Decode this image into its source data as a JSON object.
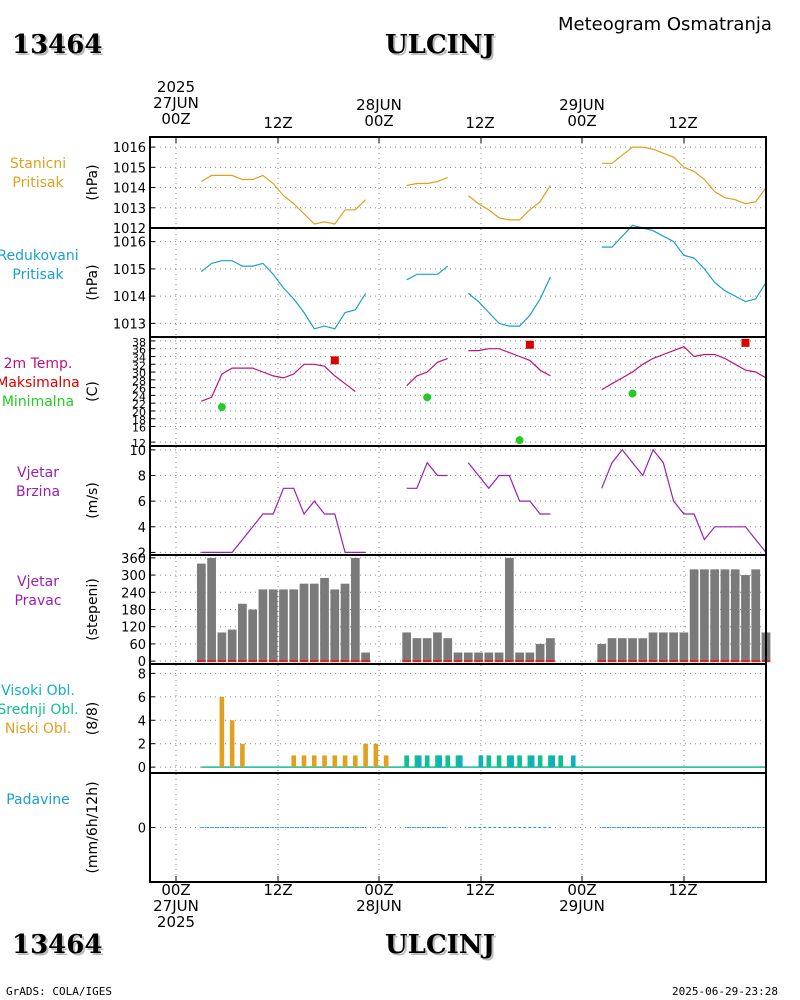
{
  "header": {
    "station_id": "13464",
    "city": "ULCINJ",
    "product": "Meteogram Osmatranja"
  },
  "time_axis": {
    "top_ticks": [
      {
        "lines": [
          "2025",
          "27JUN",
          "00Z"
        ]
      },
      {
        "lines": [
          "12Z"
        ]
      },
      {
        "lines": [
          "28JUN",
          "00Z"
        ]
      },
      {
        "lines": [
          "12Z"
        ]
      },
      {
        "lines": [
          "29JUN",
          "00Z"
        ]
      },
      {
        "lines": [
          "12Z"
        ]
      }
    ],
    "bottom_ticks": [
      {
        "lines": [
          "00Z",
          "27JUN",
          "2025"
        ]
      },
      {
        "lines": [
          "12Z"
        ]
      },
      {
        "lines": [
          "00Z",
          "28JUN"
        ]
      },
      {
        "lines": [
          "12Z"
        ]
      },
      {
        "lines": [
          "00Z",
          "29JUN"
        ]
      },
      {
        "lines": [
          "12Z"
        ]
      }
    ]
  },
  "panels": {
    "pressure_station": {
      "labels": [
        "Stanicni",
        "Pritisak"
      ],
      "unit": "(hPa)",
      "colors": [
        "#e0a020"
      ]
    },
    "pressure_reduced": {
      "labels": [
        "Redukovani",
        "Pritisak"
      ],
      "unit": "(hPa)",
      "colors": [
        "#1aa0d0"
      ]
    },
    "temperature": {
      "labels": [
        "2m Temp.",
        "Maksimalna",
        "Minimalna"
      ],
      "unit": "(C)",
      "colors": [
        "#c0107a",
        "#dd0000",
        "#22cc22"
      ]
    },
    "wind_speed": {
      "labels": [
        "Vjetar",
        "Brzina"
      ],
      "unit": "(m/s)",
      "colors": [
        "#9a20b0"
      ]
    },
    "wind_dir": {
      "labels": [
        "Vjetar",
        "Pravac"
      ],
      "unit": "(stepeni)",
      "colors": [
        "#9a20b0"
      ]
    },
    "clouds": {
      "labels": [
        "Visoki Obl.",
        "Srednji Obl.",
        "Niski Obl."
      ],
      "unit": "(8/8)",
      "colors": [
        "#10b0c0",
        "#10c090",
        "#e0a020"
      ]
    },
    "precip": {
      "labels": [
        "Padavine"
      ],
      "unit": "(mm/6h/12h)",
      "colors": [
        "#1aa0d0"
      ]
    }
  },
  "chart_data": [
    {
      "type": "line",
      "name": "Stanicni Pritisak",
      "ylabel": "(hPa)",
      "yticks": [
        1012,
        1013,
        1014,
        1015,
        1016
      ],
      "ylim": [
        1012,
        1016.5
      ],
      "xlim": [
        -2,
        58
      ],
      "segments": [
        [
          [
            3,
            1014.3
          ],
          [
            4,
            1014.6
          ],
          [
            5,
            1014.6
          ],
          [
            6,
            1014.6
          ],
          [
            7,
            1014.4
          ],
          [
            8,
            1014.4
          ],
          [
            9,
            1014.6
          ],
          [
            10,
            1014.2
          ],
          [
            11,
            1013.6
          ],
          [
            12,
            1013.2
          ],
          [
            13,
            1012.7
          ],
          [
            14,
            1012.2
          ],
          [
            15,
            1012.3
          ],
          [
            16,
            1012.2
          ],
          [
            17,
            1012.9
          ],
          [
            18,
            1012.9
          ],
          [
            19,
            1013.4
          ]
        ],
        [
          [
            23,
            1014.1
          ],
          [
            24,
            1014.2
          ],
          [
            25,
            1014.2
          ],
          [
            26,
            1014.3
          ],
          [
            27,
            1014.5
          ]
        ],
        [
          [
            29,
            1013.6
          ],
          [
            30,
            1013.2
          ],
          [
            31,
            1012.9
          ],
          [
            32,
            1012.5
          ],
          [
            33,
            1012.4
          ],
          [
            34,
            1012.4
          ],
          [
            35,
            1012.9
          ],
          [
            36,
            1013.3
          ],
          [
            37,
            1014.1
          ]
        ],
        [
          [
            42,
            1015.2
          ],
          [
            43,
            1015.2
          ],
          [
            44,
            1015.6
          ],
          [
            45,
            1016.0
          ],
          [
            46,
            1016.0
          ],
          [
            47,
            1015.9
          ],
          [
            48,
            1015.7
          ],
          [
            49,
            1015.5
          ],
          [
            50,
            1015.0
          ],
          [
            51,
            1014.8
          ],
          [
            52,
            1014.4
          ],
          [
            53,
            1013.8
          ],
          [
            54,
            1013.5
          ],
          [
            55,
            1013.4
          ],
          [
            56,
            1013.2
          ],
          [
            57,
            1013.3
          ],
          [
            58,
            1014.0
          ]
        ]
      ],
      "color": "#e0a020"
    },
    {
      "type": "line",
      "name": "Redukovani Pritisak",
      "ylabel": "(hPa)",
      "yticks": [
        1013,
        1014,
        1015,
        1016
      ],
      "ylim": [
        1012.5,
        1016.5
      ],
      "xlim": [
        -2,
        58
      ],
      "segments": [
        [
          [
            3,
            1014.9
          ],
          [
            4,
            1015.2
          ],
          [
            5,
            1015.3
          ],
          [
            6,
            1015.3
          ],
          [
            7,
            1015.1
          ],
          [
            8,
            1015.1
          ],
          [
            9,
            1015.2
          ],
          [
            10,
            1014.8
          ],
          [
            11,
            1014.3
          ],
          [
            12,
            1013.9
          ],
          [
            13,
            1013.4
          ],
          [
            14,
            1012.8
          ],
          [
            15,
            1012.9
          ],
          [
            16,
            1012.8
          ],
          [
            17,
            1013.4
          ],
          [
            18,
            1013.5
          ],
          [
            19,
            1014.1
          ]
        ],
        [
          [
            23,
            1014.6
          ],
          [
            24,
            1014.8
          ],
          [
            25,
            1014.8
          ],
          [
            26,
            1014.8
          ],
          [
            27,
            1015.1
          ]
        ],
        [
          [
            29,
            1014.1
          ],
          [
            30,
            1013.8
          ],
          [
            31,
            1013.4
          ],
          [
            32,
            1013.0
          ],
          [
            33,
            1012.9
          ],
          [
            34,
            1012.9
          ],
          [
            35,
            1013.3
          ],
          [
            36,
            1013.9
          ],
          [
            37,
            1014.7
          ]
        ],
        [
          [
            42,
            1015.8
          ],
          [
            43,
            1015.8
          ],
          [
            44,
            1016.2
          ],
          [
            45,
            1016.6
          ],
          [
            46,
            1016.5
          ],
          [
            47,
            1016.4
          ],
          [
            48,
            1016.2
          ],
          [
            49,
            1016.0
          ],
          [
            50,
            1015.5
          ],
          [
            51,
            1015.4
          ],
          [
            52,
            1015.0
          ],
          [
            53,
            1014.5
          ],
          [
            54,
            1014.2
          ],
          [
            55,
            1014.0
          ],
          [
            56,
            1013.8
          ],
          [
            57,
            1013.9
          ],
          [
            58,
            1014.5
          ]
        ]
      ],
      "color": "#1aa0d0"
    },
    {
      "type": "line",
      "name": "2m Temp.",
      "ylabel": "(C)",
      "yticks": [
        12,
        16,
        18,
        20,
        22,
        24,
        26,
        28,
        30,
        32,
        34,
        36,
        38
      ],
      "ylim": [
        11,
        39
      ],
      "xlim": [
        -2,
        58
      ],
      "segments": [
        [
          [
            3,
            22.5
          ],
          [
            4,
            23.5
          ],
          [
            5,
            29.5
          ],
          [
            6,
            31.0
          ],
          [
            7,
            31.0
          ],
          [
            8,
            31.0
          ],
          [
            9,
            30.0
          ],
          [
            10,
            29.0
          ],
          [
            11,
            28.5
          ],
          [
            12,
            29.5
          ],
          [
            13,
            32.0
          ],
          [
            14,
            32.0
          ],
          [
            15,
            31.5
          ],
          [
            16,
            29.0
          ],
          [
            17,
            27.0
          ],
          [
            18,
            25.0
          ]
        ],
        [
          [
            23,
            26.5
          ],
          [
            24,
            29.0
          ],
          [
            25,
            30.0
          ],
          [
            26,
            32.5
          ],
          [
            27,
            33.5
          ]
        ],
        [
          [
            29,
            35.5
          ],
          [
            30,
            35.5
          ],
          [
            31,
            36.0
          ],
          [
            32,
            36.0
          ],
          [
            33,
            35.0
          ],
          [
            34,
            34.0
          ],
          [
            35,
            33.0
          ],
          [
            36,
            30.5
          ],
          [
            37,
            29.0
          ]
        ],
        [
          [
            42,
            25.5
          ],
          [
            43,
            27.0
          ],
          [
            44,
            28.5
          ],
          [
            45,
            30.0
          ],
          [
            46,
            32.0
          ],
          [
            47,
            33.5
          ],
          [
            48,
            34.5
          ],
          [
            49,
            35.5
          ],
          [
            50,
            36.5
          ],
          [
            51,
            34.0
          ],
          [
            52,
            34.5
          ],
          [
            53,
            34.5
          ],
          [
            54,
            33.5
          ],
          [
            55,
            32.0
          ],
          [
            56,
            30.5
          ],
          [
            57,
            30.0
          ],
          [
            58,
            28.5
          ]
        ]
      ],
      "max_points": [
        [
          16,
          33.0
        ],
        [
          35,
          37.0
        ],
        [
          56,
          37.5
        ]
      ],
      "min_points": [
        [
          5,
          21.0
        ],
        [
          25,
          23.5
        ],
        [
          34,
          12.5
        ],
        [
          45,
          24.5
        ]
      ],
      "colors": {
        "temp": "#c0107a",
        "max": "#dd0000",
        "min": "#22cc22"
      }
    },
    {
      "type": "line",
      "name": "Vjetar Brzina",
      "ylabel": "(m/s)",
      "yticks": [
        2,
        4,
        6,
        8,
        10
      ],
      "ylim": [
        1.8,
        10.3
      ],
      "xlim": [
        -2,
        58
      ],
      "segments": [
        [
          [
            3,
            2
          ],
          [
            4,
            2
          ],
          [
            5,
            2
          ],
          [
            6,
            2
          ],
          [
            7,
            3
          ],
          [
            8,
            4
          ],
          [
            9,
            5
          ],
          [
            10,
            5
          ],
          [
            11,
            7
          ],
          [
            12,
            7
          ],
          [
            13,
            5
          ],
          [
            14,
            6
          ],
          [
            15,
            5
          ],
          [
            16,
            5
          ],
          [
            17,
            2
          ],
          [
            18,
            2
          ],
          [
            19,
            2
          ]
        ],
        [
          [
            23,
            7
          ],
          [
            24,
            7
          ],
          [
            25,
            9
          ],
          [
            26,
            8
          ],
          [
            27,
            8
          ]
        ],
        [
          [
            29,
            9
          ],
          [
            30,
            8
          ],
          [
            31,
            7
          ],
          [
            32,
            8
          ],
          [
            33,
            8
          ],
          [
            34,
            6
          ],
          [
            35,
            6
          ],
          [
            36,
            5
          ],
          [
            37,
            5
          ]
        ],
        [
          [
            42,
            7
          ],
          [
            43,
            9
          ],
          [
            44,
            10
          ],
          [
            45,
            9
          ],
          [
            46,
            8
          ],
          [
            47,
            10
          ],
          [
            48,
            9
          ],
          [
            49,
            6
          ],
          [
            50,
            5
          ],
          [
            51,
            5
          ],
          [
            52,
            3
          ],
          [
            53,
            4
          ],
          [
            54,
            4
          ],
          [
            55,
            4
          ],
          [
            56,
            4
          ],
          [
            57,
            3
          ],
          [
            58,
            2
          ]
        ]
      ],
      "color": "#9a20b0"
    },
    {
      "type": "bar",
      "name": "Vjetar Pravac",
      "ylabel": "(stepeni)",
      "yticks": [
        0,
        60,
        120,
        180,
        240,
        300,
        360
      ],
      "ylim": [
        -10,
        370
      ],
      "xlim": [
        -2,
        58
      ],
      "x": [
        3,
        4,
        5,
        6,
        7,
        8,
        9,
        10,
        11,
        12,
        13,
        14,
        15,
        16,
        17,
        18,
        19,
        23,
        24,
        25,
        26,
        27,
        28,
        29,
        30,
        31,
        32,
        33,
        34,
        35,
        36,
        37,
        42,
        43,
        44,
        45,
        46,
        47,
        48,
        49,
        50,
        51,
        52,
        53,
        54,
        55,
        56,
        57,
        58
      ],
      "values": [
        340,
        360,
        100,
        110,
        200,
        180,
        250,
        250,
        250,
        250,
        270,
        270,
        290,
        250,
        270,
        360,
        30,
        100,
        80,
        80,
        100,
        80,
        30,
        30,
        30,
        30,
        30,
        360,
        30,
        30,
        60,
        80,
        60,
        80,
        80,
        80,
        80,
        100,
        100,
        100,
        100,
        320,
        320,
        320,
        320,
        320,
        300,
        320,
        100
      ],
      "color": "#7a7a7a",
      "marker_color": "#dd2020"
    },
    {
      "type": "bar",
      "name": "Oblaci",
      "ylabel": "(8/8)",
      "yticks": [
        0,
        2,
        4,
        6,
        8
      ],
      "ylim": [
        -0.5,
        8.8
      ],
      "xlim": [
        -2,
        58
      ],
      "low": {
        "x": [
          5,
          6,
          7,
          12,
          13,
          14,
          15,
          16,
          17,
          18,
          19,
          20,
          21
        ],
        "values": [
          6,
          4,
          2,
          1,
          1,
          1,
          1,
          1,
          1,
          1,
          2,
          2,
          1
        ]
      },
      "middle": {
        "x": [
          23,
          24,
          25,
          26,
          27,
          28,
          31,
          32,
          33,
          34,
          35,
          36,
          37,
          38
        ],
        "values": [
          1,
          1,
          1,
          1,
          1,
          1,
          1,
          1,
          1,
          1,
          1,
          1,
          1,
          1
        ]
      },
      "high": {
        "x": [
          24,
          26,
          28,
          30,
          33,
          35,
          37,
          39
        ],
        "values": [
          1,
          1,
          1,
          1,
          1,
          1,
          1,
          1
        ]
      },
      "colors": {
        "high": "#10b0c0",
        "middle": "#10c090",
        "low": "#e0a020"
      }
    },
    {
      "type": "line",
      "name": "Padavine",
      "ylabel": "(mm/6h/12h)",
      "yticks": [
        0
      ],
      "ylim": [
        -1,
        1
      ],
      "xlim": [
        -2,
        58
      ],
      "segments": [
        [
          [
            3,
            0
          ],
          [
            19,
            0
          ]
        ],
        [
          [
            23,
            0
          ],
          [
            27,
            0
          ]
        ],
        [
          [
            29,
            0
          ],
          [
            37,
            0
          ]
        ],
        [
          [
            42,
            0
          ],
          [
            58,
            0
          ]
        ]
      ],
      "color": "#1aa0d0"
    }
  ],
  "footer": {
    "left": "GrADS: COLA/IGES",
    "right": "2025-06-29-23:28"
  }
}
